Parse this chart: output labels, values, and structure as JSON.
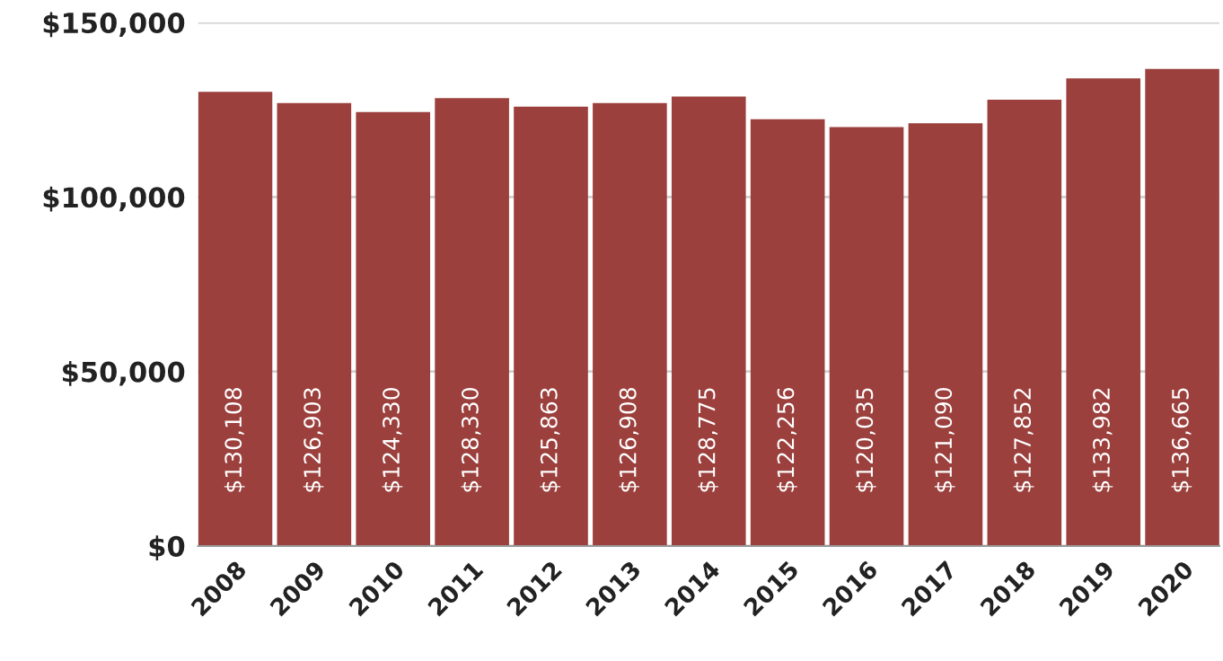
{
  "chart_data": {
    "type": "bar",
    "categories": [
      "2008",
      "2009",
      "2010",
      "2011",
      "2012",
      "2013",
      "2014",
      "2015",
      "2016",
      "2017",
      "2018",
      "2019",
      "2020"
    ],
    "values": [
      130108,
      126903,
      124330,
      128330,
      125863,
      126908,
      128775,
      122256,
      120035,
      121090,
      127852,
      133982,
      136665
    ],
    "value_labels": [
      "$130,108",
      "$126,903",
      "$124,330",
      "$128,330",
      "$125,863",
      "$126,908",
      "$128,775",
      "$122,256",
      "$120,035",
      "$121,090",
      "$127,852",
      "$133,982",
      "$136,665"
    ],
    "color": "#9b403d",
    "ylim": [
      0,
      150000
    ],
    "yticks": [
      {
        "value": 0,
        "label": "$0"
      },
      {
        "value": 50000,
        "label": "$50,000"
      },
      {
        "value": 100000,
        "label": "$100,000"
      },
      {
        "value": 150000,
        "label": "$150,000"
      }
    ],
    "grid": "y",
    "legend": false
  }
}
